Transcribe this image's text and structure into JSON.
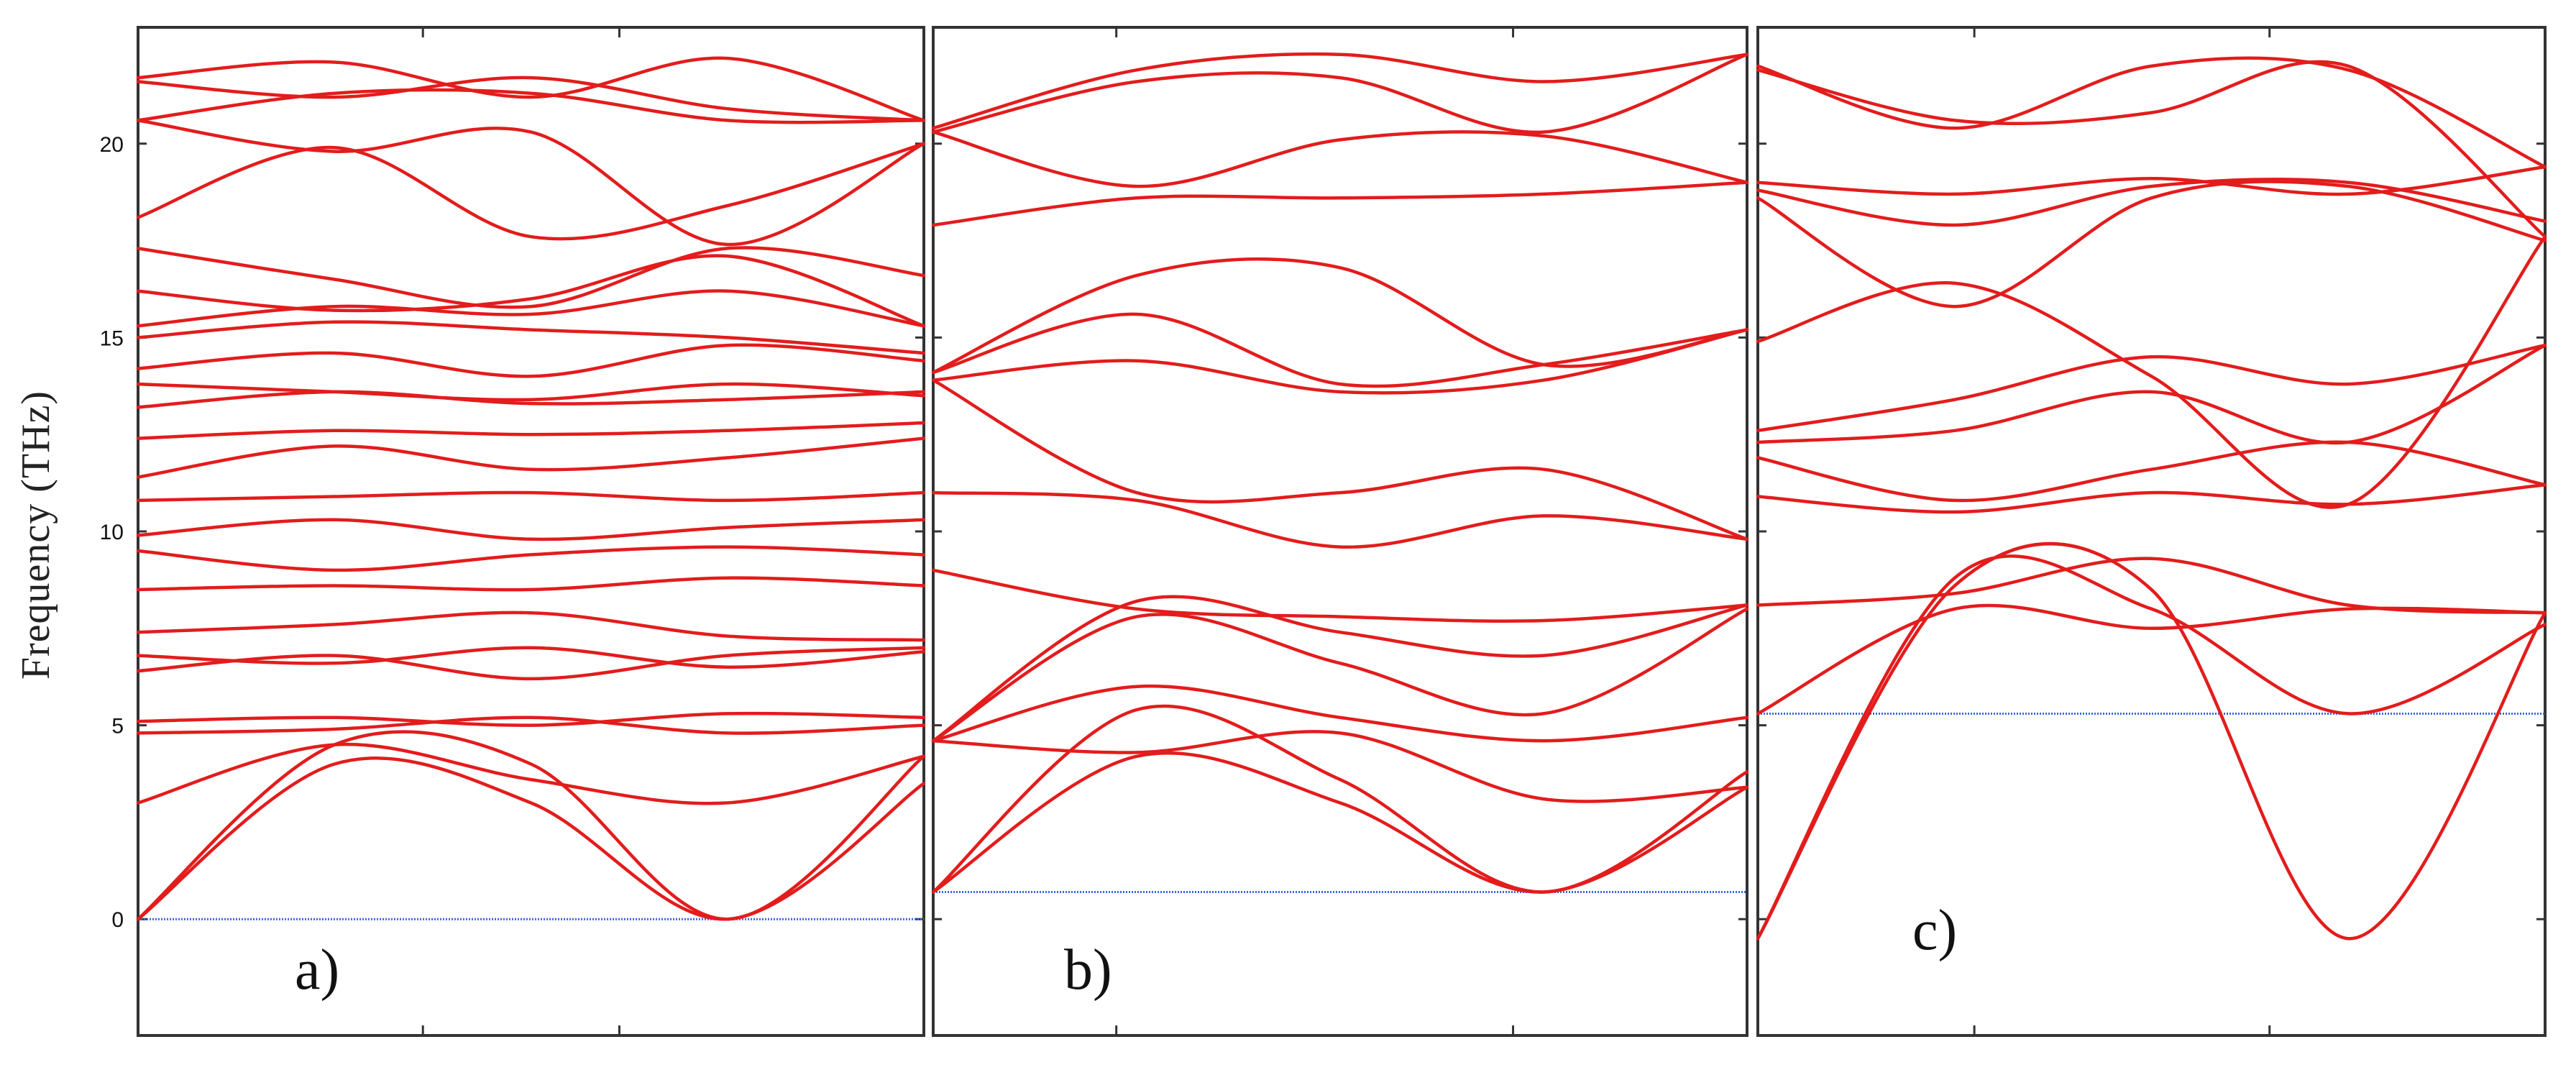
{
  "ylabel": "Frequency (THz)",
  "colors": {
    "band": "#e31c1c",
    "fermi": "#3b63e6",
    "frame": "#333333"
  },
  "chart_data": [
    {
      "type": "line",
      "panel_label": "a)",
      "xlim": [
        0,
        4
      ],
      "ylim": [
        -3,
        23
      ],
      "yticks": [
        0,
        5,
        10,
        15,
        20
      ],
      "xticks": [
        0,
        1.45,
        2.45,
        4
      ],
      "hline": 0,
      "series": [
        {
          "x": [
            0,
            1,
            2,
            3,
            4
          ],
          "y": [
            0,
            4.0,
            3.0,
            0,
            3.5
          ]
        },
        {
          "x": [
            0,
            1,
            2,
            3,
            4
          ],
          "y": [
            0,
            4.5,
            4.0,
            0,
            4.2
          ]
        },
        {
          "x": [
            0,
            1,
            2,
            3,
            4
          ],
          "y": [
            3.0,
            4.5,
            3.6,
            3.0,
            4.2
          ]
        },
        {
          "x": [
            0,
            1,
            2,
            3,
            4
          ],
          "y": [
            4.8,
            4.9,
            5.2,
            4.8,
            5.0
          ]
        },
        {
          "x": [
            0,
            1,
            2,
            3,
            4
          ],
          "y": [
            5.1,
            5.2,
            5.0,
            5.3,
            5.2
          ]
        },
        {
          "x": [
            0,
            1,
            2,
            3,
            4
          ],
          "y": [
            6.4,
            6.8,
            6.2,
            6.8,
            7.0
          ]
        },
        {
          "x": [
            0,
            1,
            2,
            3,
            4
          ],
          "y": [
            6.8,
            6.6,
            7.0,
            6.5,
            6.9
          ]
        },
        {
          "x": [
            0,
            1,
            2,
            3,
            4
          ],
          "y": [
            7.4,
            7.6,
            7.9,
            7.3,
            7.2
          ]
        },
        {
          "x": [
            0,
            1,
            2,
            3,
            4
          ],
          "y": [
            8.5,
            8.6,
            8.5,
            8.8,
            8.6
          ]
        },
        {
          "x": [
            0,
            1,
            2,
            3,
            4
          ],
          "y": [
            9.5,
            9.0,
            9.4,
            9.6,
            9.4
          ]
        },
        {
          "x": [
            0,
            1,
            2,
            3,
            4
          ],
          "y": [
            9.9,
            10.3,
            9.8,
            10.1,
            10.3
          ]
        },
        {
          "x": [
            0,
            1,
            2,
            3,
            4
          ],
          "y": [
            10.8,
            10.9,
            11.0,
            10.8,
            11.0
          ]
        },
        {
          "x": [
            0,
            1,
            2,
            3,
            4
          ],
          "y": [
            11.4,
            12.2,
            11.6,
            11.9,
            12.4
          ]
        },
        {
          "x": [
            0,
            1,
            2,
            3,
            4
          ],
          "y": [
            12.4,
            12.6,
            12.5,
            12.6,
            12.8
          ]
        },
        {
          "x": [
            0,
            1,
            2,
            3,
            4
          ],
          "y": [
            13.2,
            13.6,
            13.3,
            13.4,
            13.6
          ]
        },
        {
          "x": [
            0,
            1,
            2,
            3,
            4
          ],
          "y": [
            13.8,
            13.6,
            13.4,
            13.8,
            13.5
          ]
        },
        {
          "x": [
            0,
            1,
            2,
            3,
            4
          ],
          "y": [
            14.2,
            14.6,
            14.0,
            14.8,
            14.4
          ]
        },
        {
          "x": [
            0,
            1,
            2,
            3,
            4
          ],
          "y": [
            15.0,
            15.4,
            15.2,
            15.0,
            14.6
          ]
        },
        {
          "x": [
            0,
            1,
            2,
            3,
            4
          ],
          "y": [
            15.3,
            15.8,
            15.6,
            16.2,
            15.3
          ]
        },
        {
          "x": [
            0,
            1,
            2,
            3,
            4
          ],
          "y": [
            16.2,
            15.7,
            16.0,
            17.1,
            15.3
          ]
        },
        {
          "x": [
            0,
            1,
            2,
            3,
            4
          ],
          "y": [
            17.3,
            16.5,
            15.8,
            17.3,
            16.6
          ]
        },
        {
          "x": [
            0,
            1,
            2,
            3,
            4
          ],
          "y": [
            18.1,
            19.9,
            17.6,
            18.4,
            20.0
          ]
        },
        {
          "x": [
            0,
            1,
            2,
            3,
            4
          ],
          "y": [
            20.6,
            19.8,
            20.3,
            17.4,
            20.0
          ]
        },
        {
          "x": [
            0,
            1,
            2,
            3,
            4
          ],
          "y": [
            20.6,
            21.3,
            21.3,
            20.6,
            20.6
          ]
        },
        {
          "x": [
            0,
            1,
            2,
            3,
            4
          ],
          "y": [
            21.6,
            21.2,
            21.7,
            20.9,
            20.6
          ]
        },
        {
          "x": [
            0,
            1,
            2,
            3,
            4
          ],
          "y": [
            21.7,
            22.1,
            21.2,
            22.2,
            20.6
          ]
        }
      ]
    },
    {
      "type": "line",
      "panel_label": "b)",
      "xlim": [
        0,
        4
      ],
      "ylim": [
        -3,
        23
      ],
      "yticks": [
        0,
        5,
        10,
        15,
        20
      ],
      "xticks": [
        0,
        0.9,
        2.85,
        4
      ],
      "hline": 0.7,
      "series": [
        {
          "x": [
            0,
            1,
            2,
            3,
            4
          ],
          "y": [
            0.7,
            4.2,
            3.0,
            0.7,
            3.4
          ]
        },
        {
          "x": [
            0,
            1,
            2,
            3,
            4
          ],
          "y": [
            0.7,
            5.4,
            3.6,
            0.7,
            3.8
          ]
        },
        {
          "x": [
            0,
            1,
            2,
            3,
            4
          ],
          "y": [
            4.6,
            4.3,
            4.8,
            3.1,
            3.4
          ]
        },
        {
          "x": [
            0,
            1,
            2,
            3,
            4
          ],
          "y": [
            4.6,
            6.0,
            5.2,
            4.6,
            5.2
          ]
        },
        {
          "x": [
            0,
            1,
            2,
            3,
            4
          ],
          "y": [
            4.6,
            7.8,
            6.6,
            5.3,
            8.0
          ]
        },
        {
          "x": [
            0,
            1,
            2,
            3,
            4
          ],
          "y": [
            4.6,
            8.2,
            7.4,
            6.8,
            8.1
          ]
        },
        {
          "x": [
            0,
            1,
            2,
            3,
            4
          ],
          "y": [
            9.0,
            8.0,
            7.8,
            7.7,
            8.1
          ]
        },
        {
          "x": [
            0,
            1,
            2,
            3,
            4
          ],
          "y": [
            11.0,
            10.8,
            9.6,
            10.4,
            9.8
          ]
        },
        {
          "x": [
            0,
            1,
            2,
            3,
            4
          ],
          "y": [
            13.9,
            11.0,
            11.0,
            11.6,
            9.8
          ]
        },
        {
          "x": [
            0,
            1,
            2,
            3,
            4
          ],
          "y": [
            13.9,
            14.4,
            13.6,
            13.9,
            15.2
          ]
        },
        {
          "x": [
            0,
            1,
            2,
            3,
            4
          ],
          "y": [
            14.1,
            15.6,
            13.8,
            14.3,
            15.2
          ]
        },
        {
          "x": [
            0,
            1,
            2,
            3,
            4
          ],
          "y": [
            14.1,
            16.6,
            16.8,
            14.3,
            15.2
          ]
        },
        {
          "x": [
            0,
            1,
            2,
            3,
            4
          ],
          "y": [
            17.9,
            18.6,
            18.6,
            18.7,
            19.0
          ]
        },
        {
          "x": [
            0,
            1,
            2,
            3,
            4
          ],
          "y": [
            20.3,
            18.9,
            20.1,
            20.2,
            19.0
          ]
        },
        {
          "x": [
            0,
            1,
            2,
            3,
            4
          ],
          "y": [
            20.3,
            21.6,
            21.7,
            20.3,
            22.3
          ]
        },
        {
          "x": [
            0,
            1,
            2,
            3,
            4
          ],
          "y": [
            20.4,
            21.9,
            22.3,
            21.6,
            22.3
          ]
        }
      ]
    },
    {
      "type": "line",
      "panel_label": "c)",
      "xlim": [
        0,
        4
      ],
      "ylim": [
        -3,
        23
      ],
      "yticks": [
        0,
        5,
        10,
        15,
        20
      ],
      "xticks": [
        0,
        1.1,
        2.6,
        4
      ],
      "hline": 5.3,
      "series": [
        {
          "x": [
            0,
            1,
            2,
            3,
            4
          ],
          "y": [
            -0.5,
            8.6,
            8.5,
            -0.5,
            7.9
          ]
        },
        {
          "x": [
            0,
            1,
            2,
            3,
            4
          ],
          "y": [
            -0.5,
            8.8,
            8.0,
            5.3,
            7.6
          ]
        },
        {
          "x": [
            0,
            1,
            2,
            3,
            4
          ],
          "y": [
            5.3,
            8.0,
            7.5,
            8.0,
            7.9
          ]
        },
        {
          "x": [
            0,
            1,
            2,
            3,
            4
          ],
          "y": [
            8.1,
            8.4,
            9.3,
            8.1,
            7.9
          ]
        },
        {
          "x": [
            0,
            1,
            2,
            3,
            4
          ],
          "y": [
            10.9,
            10.5,
            11.0,
            10.7,
            11.2
          ]
        },
        {
          "x": [
            0,
            1,
            2,
            3,
            4
          ],
          "y": [
            11.9,
            10.8,
            11.6,
            12.3,
            11.2
          ]
        },
        {
          "x": [
            0,
            1,
            2,
            3,
            4
          ],
          "y": [
            12.3,
            12.6,
            13.6,
            12.3,
            14.8
          ]
        },
        {
          "x": [
            0,
            1,
            2,
            3,
            4
          ],
          "y": [
            12.6,
            13.4,
            14.5,
            13.8,
            14.8
          ]
        },
        {
          "x": [
            0,
            1,
            2,
            3,
            4
          ],
          "y": [
            14.9,
            16.4,
            14.0,
            10.7,
            17.6
          ]
        },
        {
          "x": [
            0,
            1,
            2,
            3,
            4
          ],
          "y": [
            18.6,
            15.8,
            18.6,
            18.9,
            17.5
          ]
        },
        {
          "x": [
            0,
            1,
            2,
            3,
            4
          ],
          "y": [
            18.8,
            17.9,
            18.9,
            19.0,
            18.0
          ]
        },
        {
          "x": [
            0,
            1,
            2,
            3,
            4
          ],
          "y": [
            19.0,
            18.7,
            19.1,
            18.7,
            19.4
          ]
        },
        {
          "x": [
            0,
            1,
            2,
            3,
            4
          ],
          "y": [
            21.9,
            20.6,
            20.8,
            22.0,
            17.6
          ]
        },
        {
          "x": [
            0,
            1,
            2,
            3,
            4
          ],
          "y": [
            22.0,
            20.4,
            22.0,
            21.9,
            19.4
          ]
        }
      ]
    }
  ]
}
